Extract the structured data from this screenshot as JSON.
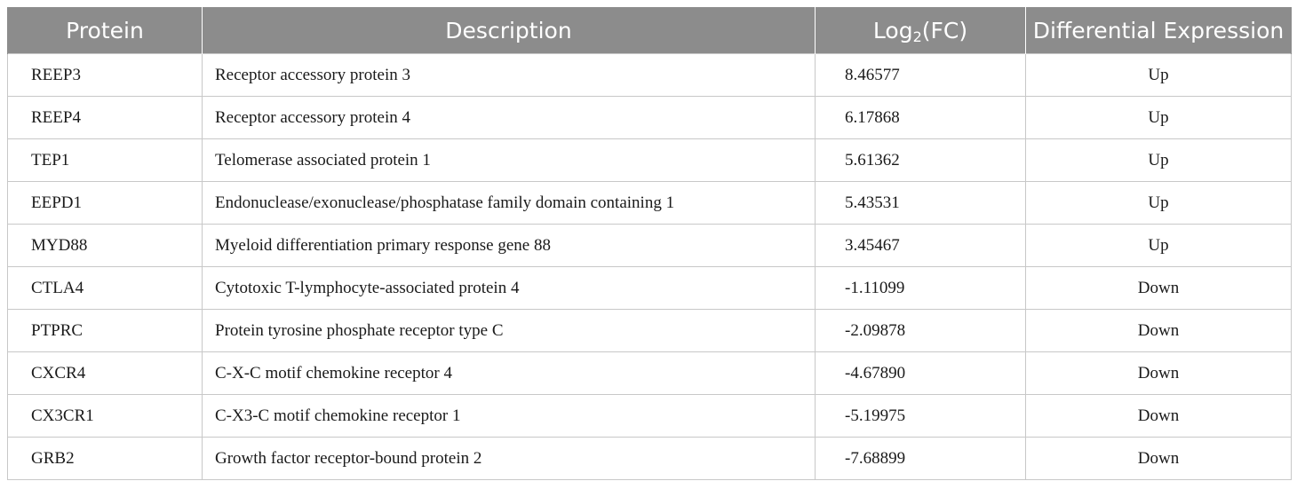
{
  "table": {
    "headers": {
      "protein": "Protein",
      "description": "Description",
      "logfc_base": "Log",
      "logfc_sub": "2",
      "logfc_tail": "(FC)",
      "expression": "Differential Expression"
    },
    "rows": [
      {
        "protein": "REEP3",
        "description": "Receptor accessory protein 3",
        "logfc": "8.46577",
        "expression": "Up"
      },
      {
        "protein": "REEP4",
        "description": "Receptor accessory protein 4",
        "logfc": "6.17868",
        "expression": "Up"
      },
      {
        "protein": "TEP1",
        "description": "Telomerase associated protein 1",
        "logfc": "5.61362",
        "expression": "Up"
      },
      {
        "protein": "EEPD1",
        "description": "Endonuclease/exonuclease/phosphatase family domain containing 1",
        "logfc": "5.43531",
        "expression": "Up"
      },
      {
        "protein": "MYD88",
        "description": "Myeloid differentiation primary response gene 88",
        "logfc": "3.45467",
        "expression": "Up"
      },
      {
        "protein": "CTLA4",
        "description": "Cytotoxic T-lymphocyte-associated protein 4",
        "logfc": "-1.11099",
        "expression": "Down"
      },
      {
        "protein": "PTPRC",
        "description": "Protein tyrosine phosphate receptor type C",
        "logfc": "-2.09878",
        "expression": "Down"
      },
      {
        "protein": "CXCR4",
        "description": "C-X-C motif chemokine receptor 4",
        "logfc": "-4.67890",
        "expression": "Down"
      },
      {
        "protein": "CX3CR1",
        "description": "C-X3-C motif chemokine receptor 1",
        "logfc": "-5.19975",
        "expression": "Down"
      },
      {
        "protein": "GRB2",
        "description": "Growth factor receptor-bound protein 2",
        "logfc": "-7.68899",
        "expression": "Down"
      }
    ]
  },
  "colors": {
    "header_bg": "#8c8c8c",
    "header_text": "#ffffff",
    "grid": "#c8c8c8"
  }
}
